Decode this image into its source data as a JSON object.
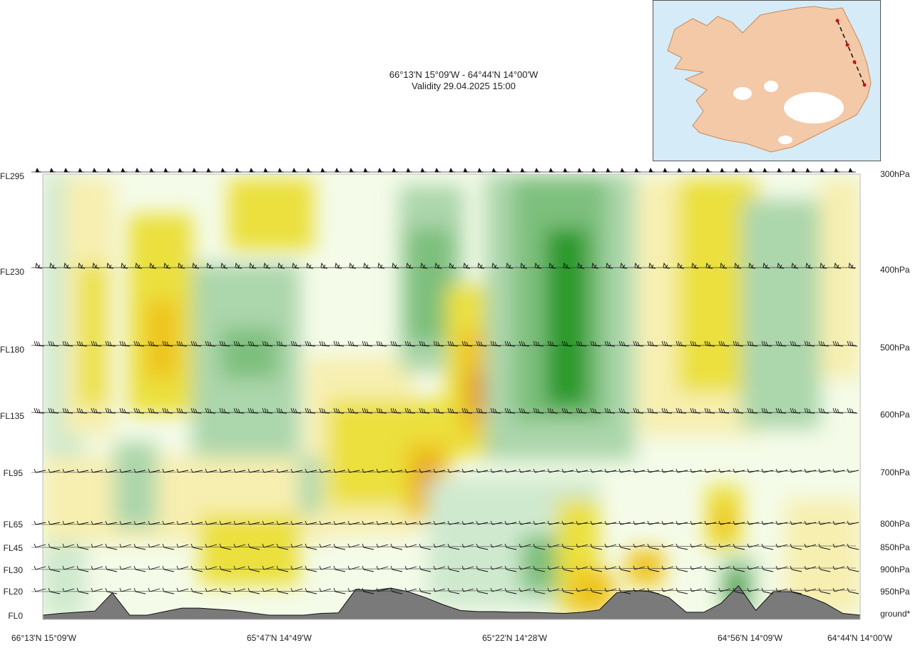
{
  "header": {
    "route": "66°13'N 15°09'W - 64°44'N 14°00'W",
    "validity": "Validity 29.04.2025 15:00"
  },
  "inset_map": {
    "region_name": "Iceland",
    "sea_color": "#d5ebf7",
    "land_color": "#f3c9a8",
    "glacier_color": "#ffffff",
    "route_color": "#d01010"
  },
  "chart_data": {
    "type": "heatmap",
    "title": "66°13'N 15°09'W - 64°44'N 14°00'W",
    "subtitle": "Validity 29.04.2025 15:00",
    "left_axis_levels": [
      "FL295",
      "FL230",
      "FL180",
      "FL135",
      "FL95",
      "FL65",
      "FL45",
      "FL30",
      "FL20",
      "FL0"
    ],
    "right_axis_levels": [
      "300hPa",
      "400hPa",
      "500hPa",
      "600hPa",
      "700hPa",
      "800hPa",
      "850hPa",
      "900hPa",
      "950hPa",
      "ground*"
    ],
    "x_tick_labels": [
      "66°13'N 15°09'W",
      "65°47'N 14°49'W",
      "65°22'N 14°28'W",
      "64°56'N 14°09'W",
      "64°44'N 14°00'W"
    ],
    "color_scale": {
      "strong_sink": "#2a9a2a",
      "sink": "#7dbf7d",
      "weak_sink": "#acd6ac",
      "very_weak_sink": "#cfe9cf",
      "neutral": "#f4fbe8",
      "very_weak_rise": "#f7efb0",
      "weak_rise": "#ebe03c",
      "rise": "#efc41a",
      "strong_rise": "#e29b2a",
      "terrain": "#7a7a7a"
    },
    "terrain_profile_ft": [
      0,
      150,
      250,
      350,
      1900,
      0,
      0,
      300,
      600,
      600,
      500,
      400,
      200,
      0,
      0,
      0,
      150,
      200,
      2200,
      2100,
      2300,
      2000,
      1500,
      900,
      400,
      300,
      300,
      250,
      250,
      200,
      150,
      250,
      450,
      1900,
      2100,
      2000,
      1500,
      250,
      250,
      1000,
      2500,
      400,
      2000,
      2000,
      1600,
      1000,
      150,
      0
    ]
  }
}
